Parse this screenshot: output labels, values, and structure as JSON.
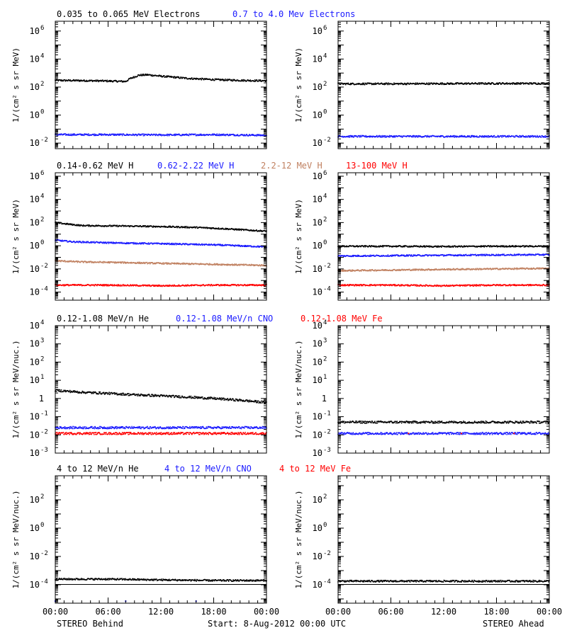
{
  "footer": {
    "left": "STEREO Behind",
    "center": "Start:  8-Aug-2012 00:00 UTC",
    "right": "STEREO Ahead"
  },
  "colors": {
    "black": "#000000",
    "blue": "#1a1aff",
    "tan": "#c08060",
    "red": "#ff0000"
  },
  "chart_data": [
    {
      "type": "scatter",
      "row": 0,
      "titles": [
        {
          "text": "0.035 to 0.065 MeV Electrons",
          "color": "#000000"
        },
        {
          "text": "0.7 to 4.0 Mev Electrons",
          "color": "#1a1aff"
        }
      ],
      "ylabel": "1/(cm² s sr MeV)",
      "yscale": "log",
      "ylim": [
        0.004,
        5000000
      ],
      "ytick_exponents": [
        -2,
        0,
        2,
        4,
        6
      ],
      "yticks_plain": [],
      "xlim": [
        0,
        24
      ],
      "xtick_labels": [],
      "panels": [
        {
          "side": "left",
          "series": [
            {
              "color": "#000000",
              "points": [
                [
                  0,
                  300
                ],
                [
                  3,
                  290
                ],
                [
                  6,
                  270
                ],
                [
                  8,
                  250
                ],
                [
                  8.5,
                  400
                ],
                [
                  9.5,
                  700
                ],
                [
                  10.5,
                  750
                ],
                [
                  12,
                  600
                ],
                [
                  15,
                  420
                ],
                [
                  18,
                  340
                ],
                [
                  21,
                  300
                ],
                [
                  24,
                  280
                ]
              ]
            },
            {
              "color": "#1a1aff",
              "points": [
                [
                  0,
                  0.04
                ],
                [
                  6,
                  0.04
                ],
                [
                  12,
                  0.038
                ],
                [
                  18,
                  0.04
                ],
                [
                  24,
                  0.036
                ]
              ]
            }
          ]
        },
        {
          "side": "right",
          "series": [
            {
              "color": "#000000",
              "points": [
                [
                  0,
                  170
                ],
                [
                  6,
                  170
                ],
                [
                  12,
                  175
                ],
                [
                  18,
                  180
                ],
                [
                  24,
                  180
                ]
              ]
            },
            {
              "color": "#1a1aff",
              "points": [
                [
                  0,
                  0.03
                ],
                [
                  6,
                  0.03
                ],
                [
                  12,
                  0.03
                ],
                [
                  18,
                  0.03
                ],
                [
                  24,
                  0.03
                ]
              ]
            }
          ]
        }
      ]
    },
    {
      "type": "scatter",
      "row": 1,
      "titles": [
        {
          "text": "0.14-0.62 MeV H",
          "color": "#000000"
        },
        {
          "text": "0.62-2.22 MeV H",
          "color": "#1a1aff"
        },
        {
          "text": "2.2-12 MeV H",
          "color": "#c08060"
        },
        {
          "text": "13-100 MeV H",
          "color": "#ff0000"
        }
      ],
      "ylabel": "1/(cm² s sr MeV)",
      "yscale": "log",
      "ylim": [
        2e-05,
        2000000
      ],
      "ytick_exponents": [
        -4,
        -2,
        0,
        2,
        4,
        6
      ],
      "yticks_plain": [],
      "xlim": [
        0,
        24
      ],
      "xtick_labels": [],
      "panels": [
        {
          "side": "left",
          "series": [
            {
              "color": "#000000",
              "points": [
                [
                  0,
                  100
                ],
                [
                  1,
                  80
                ],
                [
                  3,
                  55
                ],
                [
                  8,
                  50
                ],
                [
                  12,
                  45
                ],
                [
                  16,
                  38
                ],
                [
                  19,
                  30
                ],
                [
                  22,
                  22
                ],
                [
                  24,
                  18
                ]
              ]
            },
            {
              "color": "#1a1aff",
              "points": [
                [
                  0,
                  3
                ],
                [
                  2,
                  2.2
                ],
                [
                  6,
                  1.8
                ],
                [
                  12,
                  1.5
                ],
                [
                  18,
                  1.2
                ],
                [
                  24,
                  0.8
                ]
              ]
            },
            {
              "color": "#c08060",
              "points": [
                [
                  0,
                  0.05
                ],
                [
                  3,
                  0.04
                ],
                [
                  8,
                  0.035
                ],
                [
                  12,
                  0.03
                ],
                [
                  18,
                  0.025
                ],
                [
                  24,
                  0.02
                ]
              ]
            },
            {
              "color": "#ff0000",
              "points": [
                [
                  0,
                  0.0004
                ],
                [
                  6,
                  0.0004
                ],
                [
                  12,
                  0.00035
                ],
                [
                  18,
                  0.0004
                ],
                [
                  24,
                  0.0004
                ]
              ]
            }
          ]
        },
        {
          "side": "right",
          "series": [
            {
              "color": "#000000",
              "points": [
                [
                  0,
                  0.9
                ],
                [
                  6,
                  0.9
                ],
                [
                  12,
                  0.85
                ],
                [
                  18,
                  0.9
                ],
                [
                  24,
                  0.9
                ]
              ]
            },
            {
              "color": "#1a1aff",
              "points": [
                [
                  0,
                  0.13
                ],
                [
                  6,
                  0.14
                ],
                [
                  12,
                  0.15
                ],
                [
                  18,
                  0.16
                ],
                [
                  24,
                  0.17
                ]
              ]
            },
            {
              "color": "#c08060",
              "points": [
                [
                  0,
                  0.007
                ],
                [
                  6,
                  0.008
                ],
                [
                  12,
                  0.009
                ],
                [
                  18,
                  0.01
                ],
                [
                  24,
                  0.011
                ]
              ]
            },
            {
              "color": "#ff0000",
              "points": [
                [
                  0,
                  0.0004
                ],
                [
                  6,
                  0.0004
                ],
                [
                  12,
                  0.00035
                ],
                [
                  18,
                  0.0004
                ],
                [
                  24,
                  0.0004
                ]
              ]
            }
          ]
        }
      ]
    },
    {
      "type": "scatter",
      "row": 2,
      "titles": [
        {
          "text": "0.12-1.08 MeV/n He",
          "color": "#000000"
        },
        {
          "text": "0.12-1.08 MeV/n CNO",
          "color": "#1a1aff"
        },
        {
          "text": "0.12-1.08 MeV Fe",
          "color": "#ff0000"
        }
      ],
      "ylabel": "1/(cm² s sr MeV/nuc.)",
      "yscale": "log",
      "ylim": [
        0.001,
        10000
      ],
      "ytick_exponents": [
        -3,
        -2,
        -1,
        1,
        2,
        3,
        4
      ],
      "yticks_plain": [
        {
          "v": 1,
          "t": "1"
        }
      ],
      "xlim": [
        0,
        24
      ],
      "xtick_labels": [],
      "panels": [
        {
          "side": "left",
          "series": [
            {
              "color": "#000000",
              "points": [
                [
                  0,
                  2.8
                ],
                [
                  3,
                  2.2
                ],
                [
                  6,
                  1.9
                ],
                [
                  9,
                  1.6
                ],
                [
                  12,
                  1.4
                ],
                [
                  15,
                  1.2
                ],
                [
                  18,
                  1.0
                ],
                [
                  21,
                  0.8
                ],
                [
                  24,
                  0.6
                ]
              ]
            },
            {
              "color": "#1a1aff",
              "points": [
                [
                  0,
                  0.025
                ],
                [
                  6,
                  0.025
                ],
                [
                  12,
                  0.025
                ],
                [
                  18,
                  0.025
                ],
                [
                  24,
                  0.025
                ]
              ]
            },
            {
              "color": "#ff0000",
              "points": [
                [
                  0,
                  0.012
                ],
                [
                  6,
                  0.012
                ],
                [
                  12,
                  0.012
                ],
                [
                  18,
                  0.012
                ],
                [
                  24,
                  0.012
                ]
              ]
            }
          ]
        },
        {
          "side": "right",
          "series": [
            {
              "color": "#000000",
              "points": [
                [
                  0,
                  0.05
                ],
                [
                  6,
                  0.05
                ],
                [
                  12,
                  0.05
                ],
                [
                  18,
                  0.05
                ],
                [
                  24,
                  0.05
                ]
              ]
            },
            {
              "color": "#1a1aff",
              "points": [
                [
                  0,
                  0.012
                ],
                [
                  6,
                  0.012
                ],
                [
                  12,
                  0.012
                ],
                [
                  18,
                  0.012
                ],
                [
                  24,
                  0.012
                ]
              ]
            },
            {
              "color": "#ff0000",
              "points": [
                [
                  8,
                  0.012
                ],
                [
                  14,
                  0.012
                ],
                [
                  20,
                  0.012
                ]
              ]
            }
          ]
        }
      ]
    },
    {
      "type": "scatter",
      "row": 3,
      "titles": [
        {
          "text": "4 to 12 MeV/n He",
          "color": "#000000"
        },
        {
          "text": "4 to 12 MeV/n CNO",
          "color": "#1a1aff"
        },
        {
          "text": "4 to 12 MeV Fe",
          "color": "#ff0000"
        }
      ],
      "ylabel": "1/(cm² s sr MeV/nuc.)",
      "yscale": "log",
      "ylim": [
        5e-06,
        5000
      ],
      "ytick_exponents": [
        -4,
        -2,
        0,
        2
      ],
      "yticks_plain": [],
      "xlim": [
        0,
        24
      ],
      "xtick_labels": [
        "00:00",
        "06:00",
        "12:00",
        "18:00",
        "00:00"
      ],
      "panels": [
        {
          "side": "left",
          "series": [
            {
              "color": "#000000",
              "points": [
                [
                  0,
                  0.00025
                ],
                [
                  6,
                  0.00025
                ],
                [
                  12,
                  0.00022
                ],
                [
                  18,
                  0.0002
                ],
                [
                  24,
                  0.0002
                ]
              ]
            },
            {
              "color": "#000000",
              "points": [
                [
                  0,
                  0.000105
                ],
                [
                  24,
                  0.000105
                ]
              ]
            },
            {
              "color": "#1a1aff",
              "points": [
                [
                  0,
                  7e-06
                ],
                [
                  8,
                  7e-06
                ],
                [
                  16,
                  7e-06
                ]
              ]
            }
          ]
        },
        {
          "side": "right",
          "series": [
            {
              "color": "#000000",
              "points": [
                [
                  0,
                  0.00018
                ],
                [
                  6,
                  0.00018
                ],
                [
                  12,
                  0.00018
                ],
                [
                  18,
                  0.00018
                ],
                [
                  24,
                  0.00018
                ]
              ]
            },
            {
              "color": "#000000",
              "points": [
                [
                  0,
                  0.000105
                ],
                [
                  24,
                  0.000105
                ]
              ]
            }
          ]
        }
      ]
    }
  ]
}
